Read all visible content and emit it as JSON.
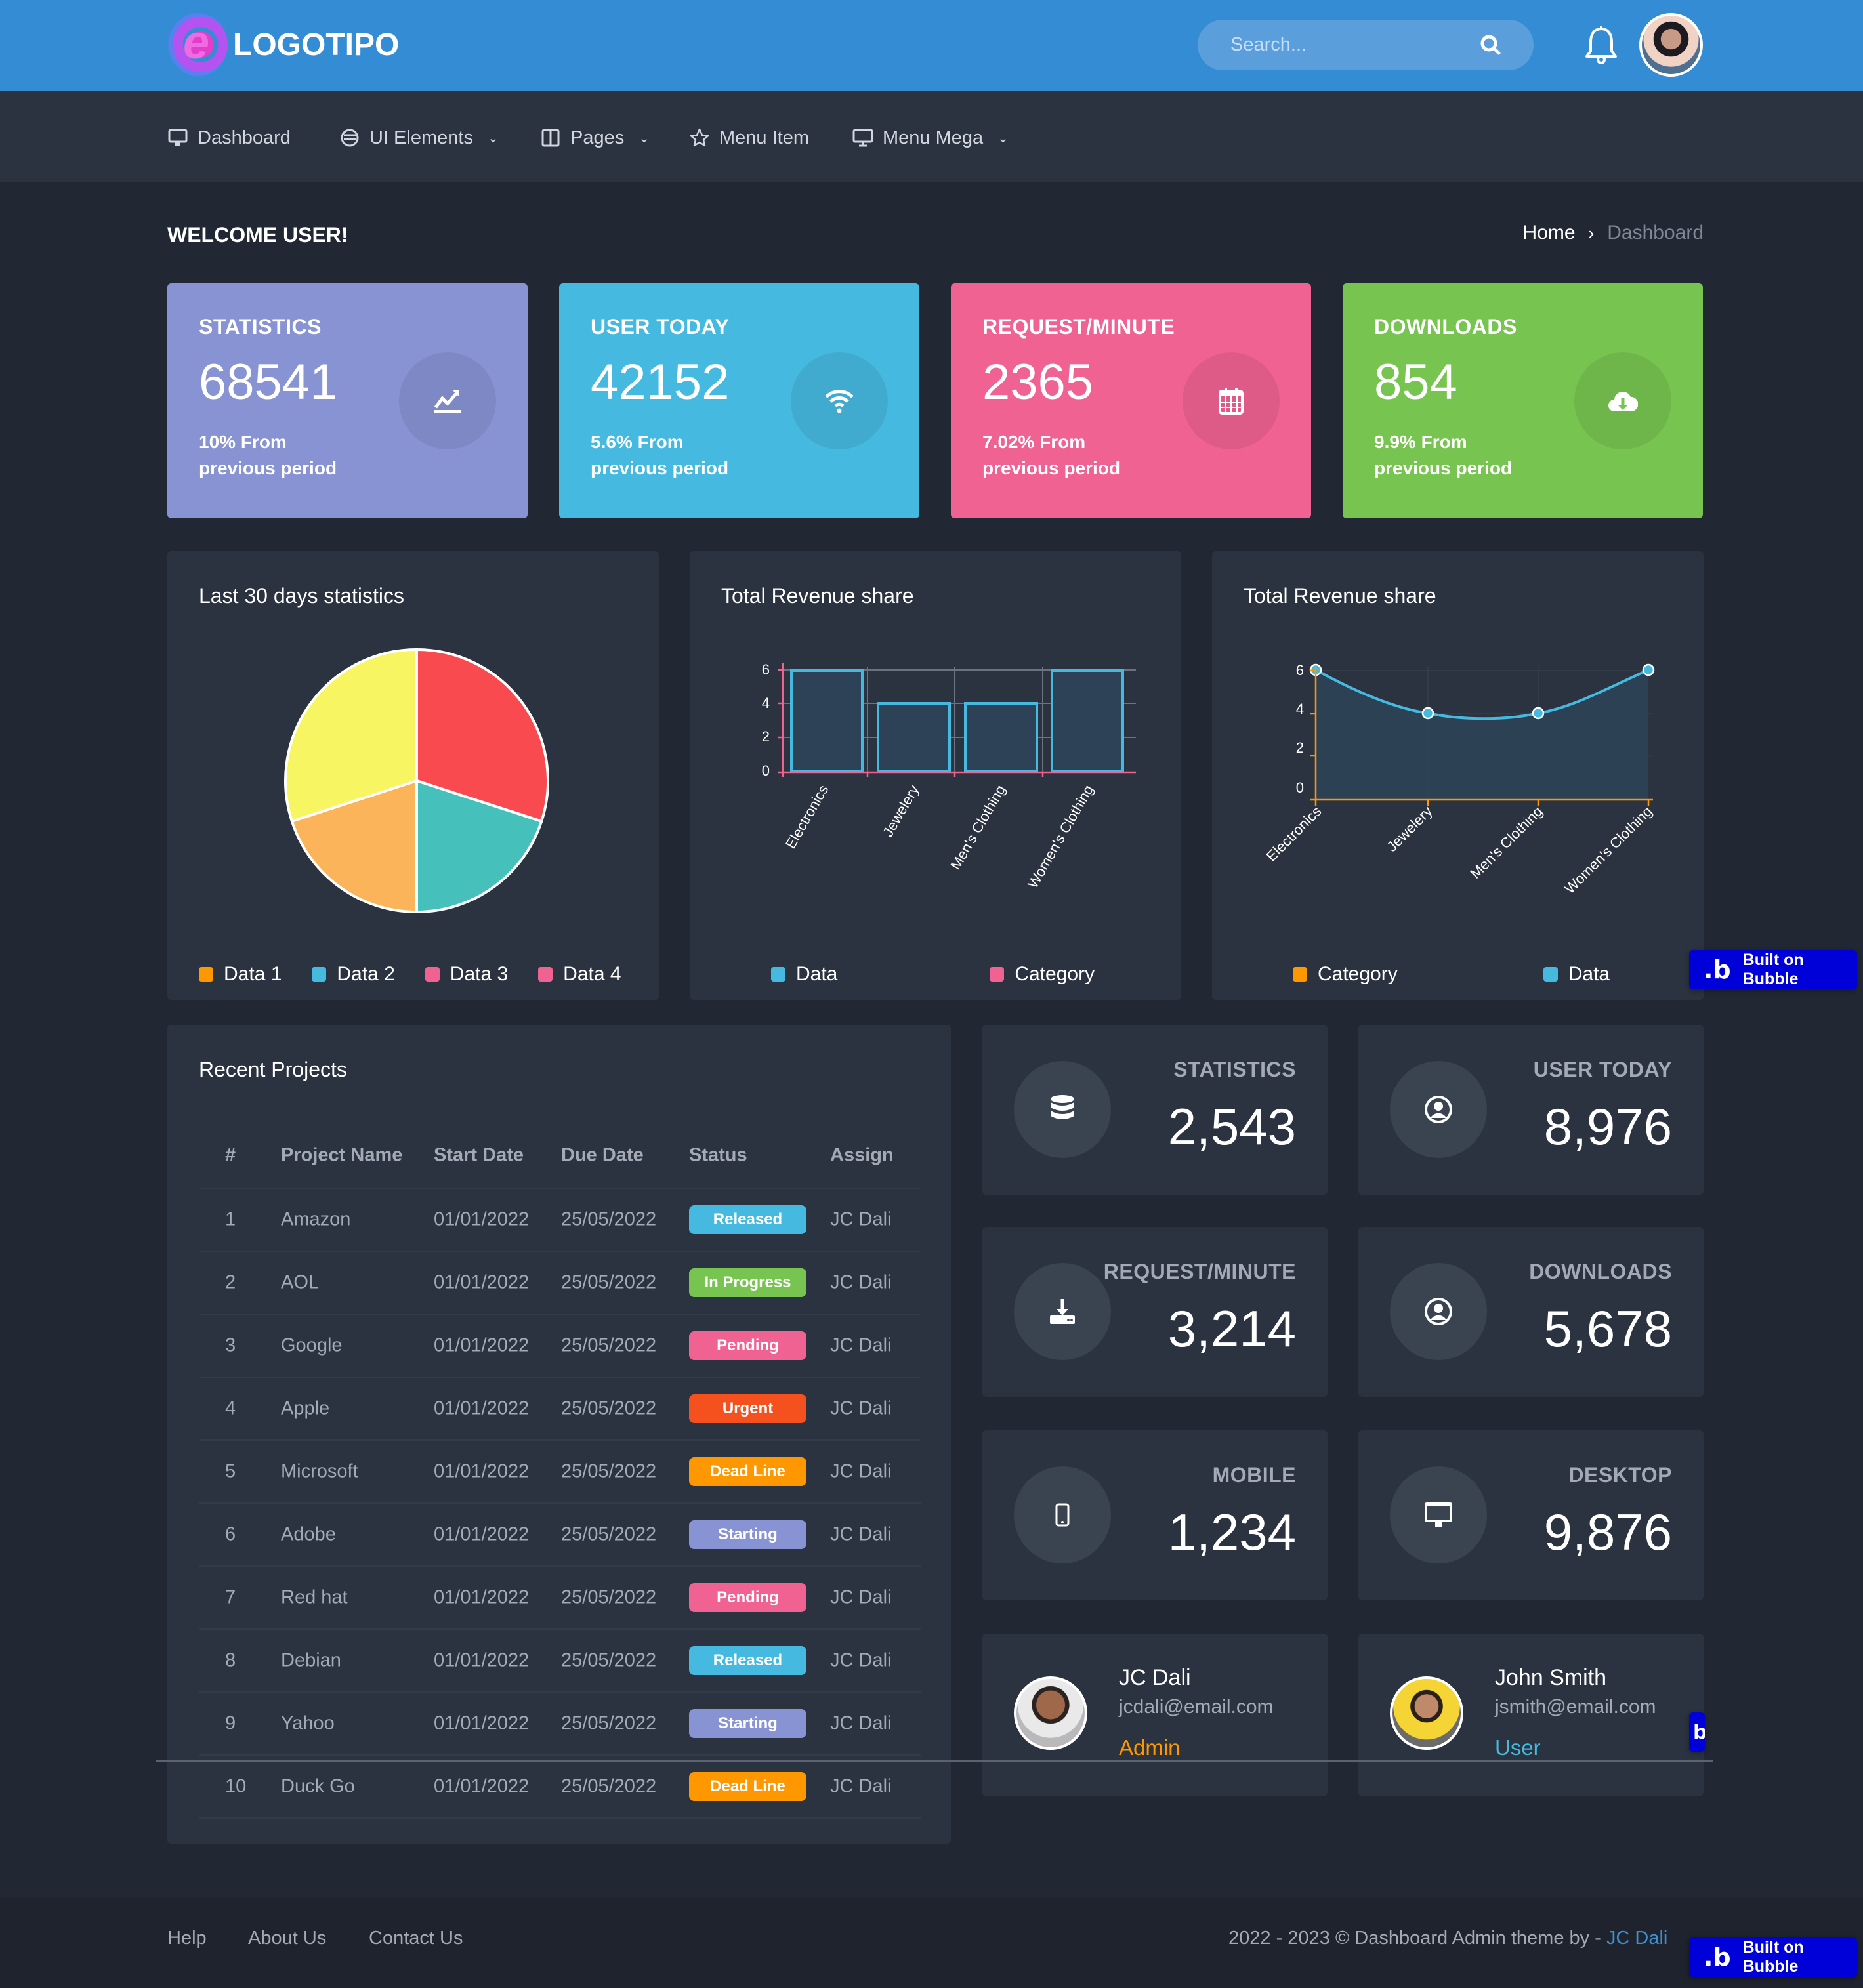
{
  "header": {
    "logo_text": "LOGOTIPO",
    "search_placeholder": "Search...",
    "colors": {
      "header_bg": "#348cd4",
      "nav_bg": "#2b3340",
      "page_bg": "#222833"
    }
  },
  "nav": {
    "items": [
      {
        "label": "Dashboard",
        "icon": "monitor-icon",
        "dropdown": false
      },
      {
        "label": "UI Elements",
        "icon": "globe-icon",
        "dropdown": true
      },
      {
        "label": "Pages",
        "icon": "columns-icon",
        "dropdown": true
      },
      {
        "label": "Menu Item",
        "icon": "star-icon",
        "dropdown": false
      },
      {
        "label": "Menu Mega",
        "icon": "monitor-icon",
        "dropdown": true
      }
    ]
  },
  "page": {
    "welcome": "WELCOME USER!",
    "breadcrumb": {
      "home": "Home",
      "separator": "›",
      "current": "Dashboard"
    }
  },
  "stat_cards": [
    {
      "title": "STATISTICS",
      "value": "68541",
      "sub1": "10% From",
      "sub2": "previous period",
      "icon": "trend-up-icon",
      "color": "#8893d4"
    },
    {
      "title": "USER TODAY",
      "value": "42152",
      "sub1": "5.6% From",
      "sub2": "previous period",
      "icon": "wifi-icon",
      "color": "#45b9df"
    },
    {
      "title": "REQUEST/MINUTE",
      "value": "2365",
      "sub1": "7.02% From",
      "sub2": "previous period",
      "icon": "calendar-icon",
      "color": "#f06292"
    },
    {
      "title": "DOWNLOADS",
      "value": "854",
      "sub1": "9.9% From",
      "sub2": "previous period",
      "icon": "cloud-download-icon",
      "color": "#78c450"
    }
  ],
  "charts": {
    "pie": {
      "title": "Last 30 days statistics",
      "legend": [
        {
          "label": "Data 1",
          "color": "#ff9800"
        },
        {
          "label": "Data 2",
          "color": "#45b9df"
        },
        {
          "label": "Data 3",
          "color": "#f06292"
        },
        {
          "label": "Data 4",
          "color": "#f06292"
        }
      ]
    },
    "bar": {
      "title": "Total Revenue share",
      "legend": [
        {
          "label": "Data",
          "color": "#45b9df"
        },
        {
          "label": "Category",
          "color": "#f06292"
        }
      ]
    },
    "line": {
      "title": "Total Revenue share",
      "legend": [
        {
          "label": "Category",
          "color": "#ff9800"
        },
        {
          "label": "Data",
          "color": "#45b9df"
        }
      ]
    }
  },
  "chart_data": [
    {
      "type": "pie",
      "title": "Last 30 days statistics",
      "categories": [
        "Red",
        "Teal",
        "Orange",
        "Yellow"
      ],
      "values": [
        30,
        20,
        20,
        30
      ],
      "colors": [
        "#f84a4f",
        "#45c0bb",
        "#fbb45a",
        "#f8f563"
      ],
      "legend": [
        "Data 1",
        "Data 2",
        "Data 3",
        "Data 4"
      ],
      "legend_position": "bottom"
    },
    {
      "type": "bar",
      "title": "Total Revenue share",
      "categories": [
        "Electronics",
        "Jewelery",
        "Men's Clothing",
        "Women's Clothing"
      ],
      "series": [
        {
          "name": "Data",
          "values": [
            6,
            4,
            4,
            6
          ]
        }
      ],
      "yticks": [
        0,
        2,
        4,
        6
      ],
      "ylim": [
        0,
        6
      ],
      "grid": true,
      "legend": [
        "Data",
        "Category"
      ],
      "legend_position": "bottom"
    },
    {
      "type": "area",
      "title": "Total Revenue share",
      "categories": [
        "Electronics",
        "Jewelery",
        "Men's Clothing",
        "Women's Clothing"
      ],
      "series": [
        {
          "name": "Data",
          "values": [
            6,
            4,
            4,
            6
          ]
        }
      ],
      "yticks": [
        0,
        2,
        4,
        6
      ],
      "ylim": [
        0,
        6
      ],
      "grid": true,
      "legend": [
        "Category",
        "Data"
      ],
      "legend_position": "bottom"
    }
  ],
  "projects": {
    "title": "Recent Projects",
    "columns": [
      "#",
      "Project Name",
      "Start Date",
      "Due Date",
      "Status",
      "Assign"
    ],
    "rows": [
      {
        "n": "1",
        "name": "Amazon",
        "start": "01/01/2022",
        "due": "25/05/2022",
        "status": "Released",
        "color": "#45b9df",
        "assign": "JC Dali"
      },
      {
        "n": "2",
        "name": "AOL",
        "start": "01/01/2022",
        "due": "25/05/2022",
        "status": "In Progress",
        "color": "#78c450",
        "assign": "JC Dali"
      },
      {
        "n": "3",
        "name": "Google",
        "start": "01/01/2022",
        "due": "25/05/2022",
        "status": "Pending",
        "color": "#f06292",
        "assign": "JC Dali"
      },
      {
        "n": "4",
        "name": "Apple",
        "start": "01/01/2022",
        "due": "25/05/2022",
        "status": "Urgent",
        "color": "#f4511e",
        "assign": "JC Dali"
      },
      {
        "n": "5",
        "name": "Microsoft",
        "start": "01/01/2022",
        "due": "25/05/2022",
        "status": "Dead Line",
        "color": "#ff9800",
        "assign": "JC Dali"
      },
      {
        "n": "6",
        "name": "Adobe",
        "start": "01/01/2022",
        "due": "25/05/2022",
        "status": "Starting",
        "color": "#8893d4",
        "assign": "JC Dali"
      },
      {
        "n": "7",
        "name": "Red hat",
        "start": "01/01/2022",
        "due": "25/05/2022",
        "status": "Pending",
        "color": "#f06292",
        "assign": "JC Dali"
      },
      {
        "n": "8",
        "name": "Debian",
        "start": "01/01/2022",
        "due": "25/05/2022",
        "status": "Released",
        "color": "#45b9df",
        "assign": "JC Dali"
      },
      {
        "n": "9",
        "name": "Yahoo",
        "start": "01/01/2022",
        "due": "25/05/2022",
        "status": "Starting",
        "color": "#8893d4",
        "assign": "JC Dali"
      },
      {
        "n": "10",
        "name": "Duck Go",
        "start": "01/01/2022",
        "due": "25/05/2022",
        "status": "Dead Line",
        "color": "#ff9800",
        "assign": "JC Dali"
      }
    ]
  },
  "mini_stats": [
    {
      "title": "STATISTICS",
      "value": "2,543",
      "icon": "database-icon"
    },
    {
      "title": "USER TODAY",
      "value": "8,976",
      "icon": "user-circle-icon"
    },
    {
      "title": "REQUEST/MINUTE",
      "value": "3,214",
      "icon": "download-icon"
    },
    {
      "title": "DOWNLOADS",
      "value": "5,678",
      "icon": "user-circle-icon"
    },
    {
      "title": "MOBILE",
      "value": "1,234",
      "icon": "mobile-icon"
    },
    {
      "title": "DESKTOP",
      "value": "9,876",
      "icon": "desktop-icon"
    }
  ],
  "profiles": [
    {
      "name": "JC Dali",
      "email": "jcdali@email.com",
      "role": "Admin",
      "role_color": "#ff9800"
    },
    {
      "name": "John Smith",
      "email": "jsmith@email.com",
      "role": "User",
      "role_color": "#45b9df"
    }
  ],
  "footer": {
    "links": [
      "Help",
      "About Us",
      "Contact Us"
    ],
    "copyright": "2022 - 2023 © Dashboard Admin theme by - ",
    "author": "JC Dali"
  },
  "bubble_badge": {
    "label": "Built on Bubble",
    "glyph": ".b"
  }
}
